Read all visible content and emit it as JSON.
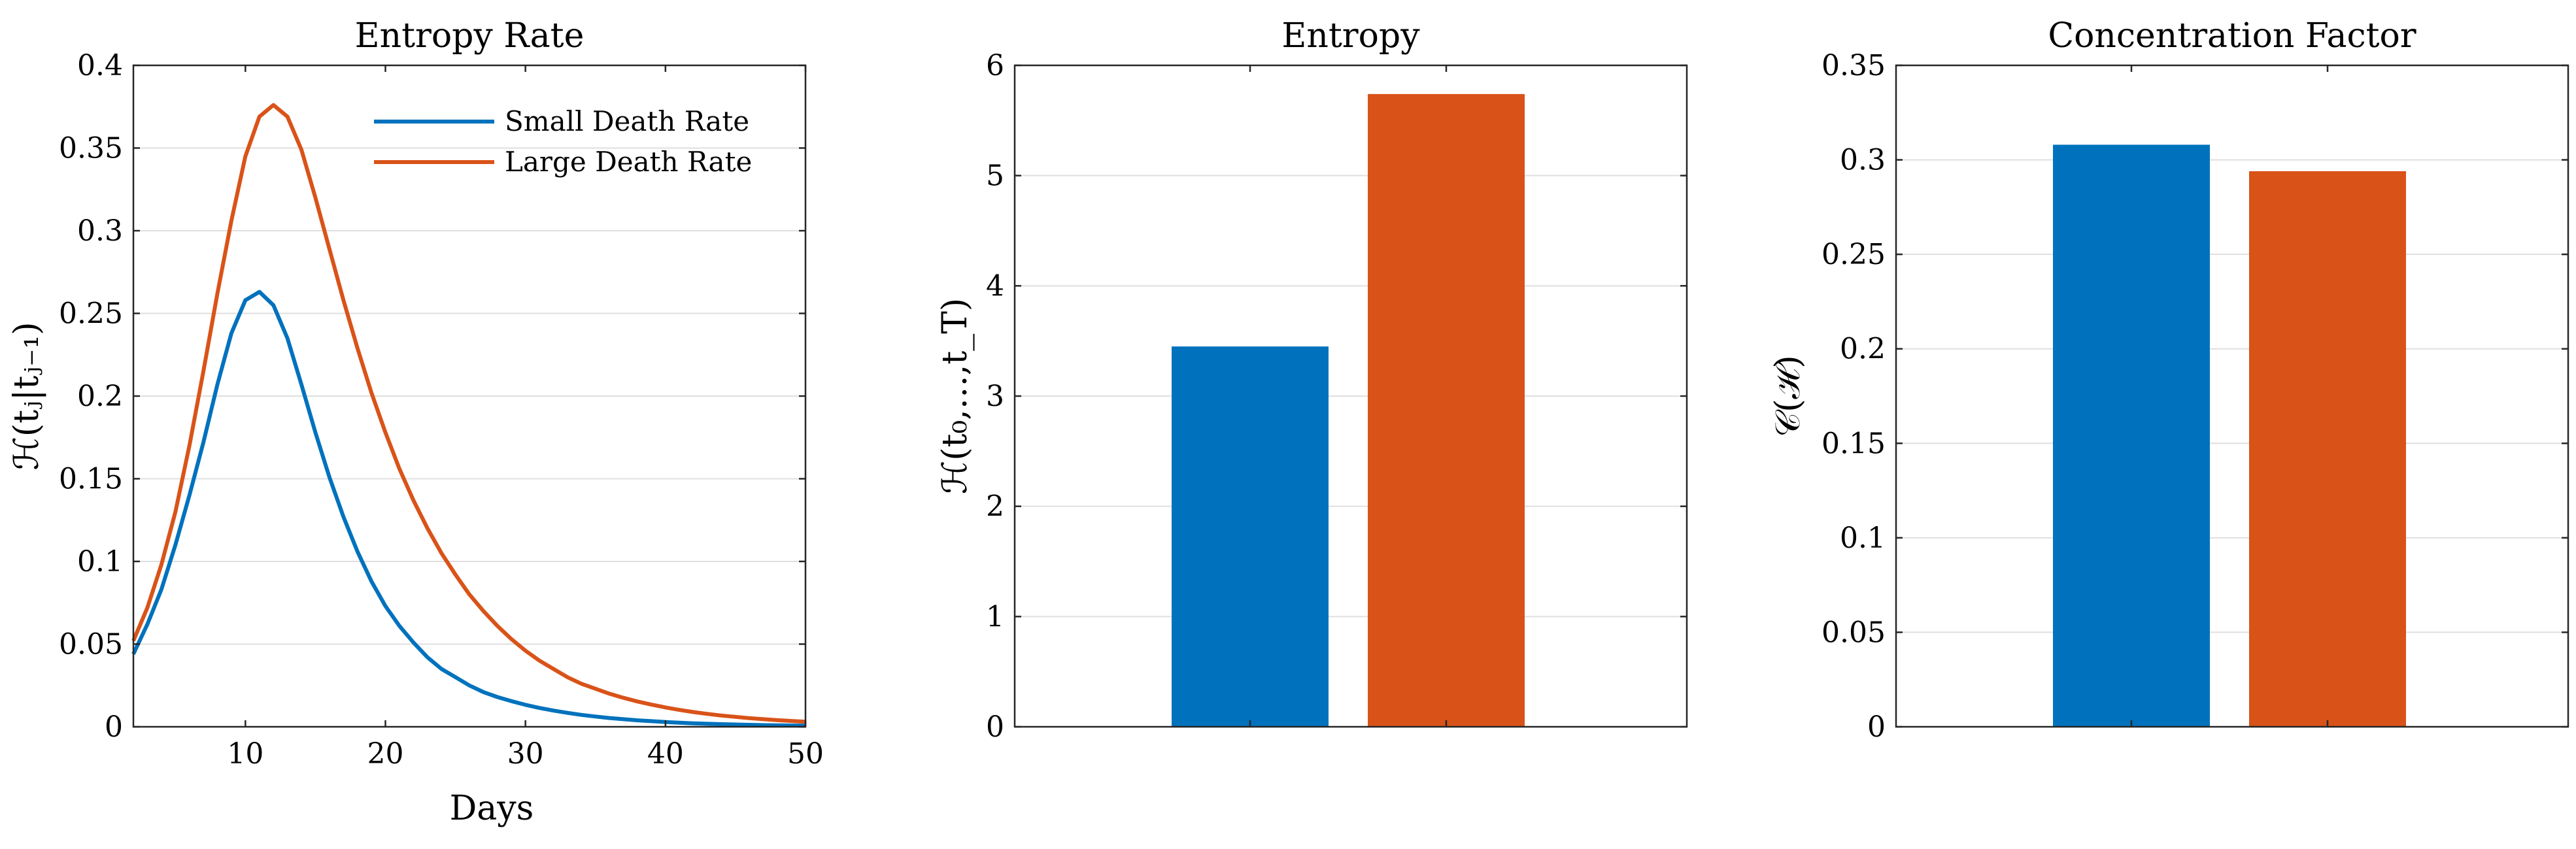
{
  "colors": {
    "blue": "#0072BD",
    "orange": "#D95319"
  },
  "chart_data": [
    {
      "type": "line",
      "title": "Entropy Rate",
      "xlabel": "Days",
      "ylabel": "ℋ(tⱼ|tⱼ₋₁)",
      "xlim": [
        2,
        50
      ],
      "ylim": [
        0,
        0.4
      ],
      "xticks": [
        10,
        20,
        30,
        40,
        50
      ],
      "yticks": [
        0,
        0.05,
        0.1,
        0.15,
        0.2,
        0.25,
        0.3,
        0.35,
        0.4
      ],
      "xtick_labels": [
        "10",
        "20",
        "30",
        "40",
        "50"
      ],
      "ytick_labels": [
        "0",
        "0.05",
        "0.1",
        "0.15",
        "0.2",
        "0.25",
        "0.3",
        "0.35",
        "0.4"
      ],
      "grid": "horizontal",
      "legend": "top-right",
      "x": [
        2,
        3,
        4,
        5,
        6,
        7,
        8,
        9,
        10,
        11,
        12,
        13,
        14,
        15,
        16,
        17,
        18,
        19,
        20,
        21,
        22,
        23,
        24,
        25,
        26,
        27,
        28,
        29,
        30,
        31,
        32,
        33,
        34,
        35,
        36,
        37,
        38,
        39,
        40,
        41,
        42,
        43,
        44,
        45,
        46,
        47,
        48,
        49,
        50
      ],
      "series": [
        {
          "name": "Small Death Rate",
          "color": "#0072BD",
          "values": [
            0.044,
            0.062,
            0.083,
            0.11,
            0.14,
            0.172,
            0.207,
            0.238,
            0.258,
            0.263,
            0.255,
            0.235,
            0.207,
            0.178,
            0.151,
            0.127,
            0.106,
            0.088,
            0.073,
            0.061,
            0.051,
            0.042,
            0.035,
            0.03,
            0.025,
            0.021,
            0.018,
            0.0155,
            0.0133,
            0.0114,
            0.0098,
            0.0084,
            0.0072,
            0.0062,
            0.0053,
            0.0046,
            0.0039,
            0.0034,
            0.0029,
            0.0025,
            0.0021,
            0.0018,
            0.0016,
            0.0014,
            0.0012,
            0.001,
            0.0009,
            0.0008,
            0.0007
          ]
        },
        {
          "name": "Large Death Rate",
          "color": "#D95319",
          "values": [
            0.052,
            0.072,
            0.098,
            0.13,
            0.17,
            0.215,
            0.262,
            0.306,
            0.345,
            0.369,
            0.376,
            0.369,
            0.349,
            0.32,
            0.289,
            0.258,
            0.229,
            0.202,
            0.178,
            0.156,
            0.137,
            0.12,
            0.105,
            0.092,
            0.08,
            0.07,
            0.061,
            0.053,
            0.046,
            0.04,
            0.035,
            0.03,
            0.026,
            0.023,
            0.02,
            0.0175,
            0.0153,
            0.0134,
            0.0117,
            0.0102,
            0.0089,
            0.0078,
            0.0068,
            0.006,
            0.0052,
            0.0046,
            0.004,
            0.0035,
            0.0031
          ]
        }
      ]
    },
    {
      "type": "bar",
      "title": "Entropy",
      "ylabel": "ℋ(t₀,…,t_T)",
      "ylim": [
        0,
        6
      ],
      "yticks": [
        0,
        1,
        2,
        3,
        4,
        5,
        6
      ],
      "ytick_labels": [
        "0",
        "1",
        "2",
        "3",
        "4",
        "5",
        "6"
      ],
      "grid": "horizontal",
      "categories": [
        "Small Death Rate",
        "Large Death Rate"
      ],
      "values": [
        3.45,
        5.74
      ],
      "colors": [
        "#0072BD",
        "#D95319"
      ]
    },
    {
      "type": "bar",
      "title": "Concentration Factor",
      "ylabel": "𝒞(ℋ)",
      "ylim": [
        0,
        0.35
      ],
      "yticks": [
        0,
        0.05,
        0.1,
        0.15,
        0.2,
        0.25,
        0.3,
        0.35
      ],
      "ytick_labels": [
        "0",
        "0.05",
        "0.1",
        "0.15",
        "0.2",
        "0.25",
        "0.3",
        "0.35"
      ],
      "grid": "horizontal",
      "categories": [
        "Small Death Rate",
        "Large Death Rate"
      ],
      "values": [
        0.308,
        0.294
      ],
      "colors": [
        "#0072BD",
        "#D95319"
      ]
    }
  ]
}
